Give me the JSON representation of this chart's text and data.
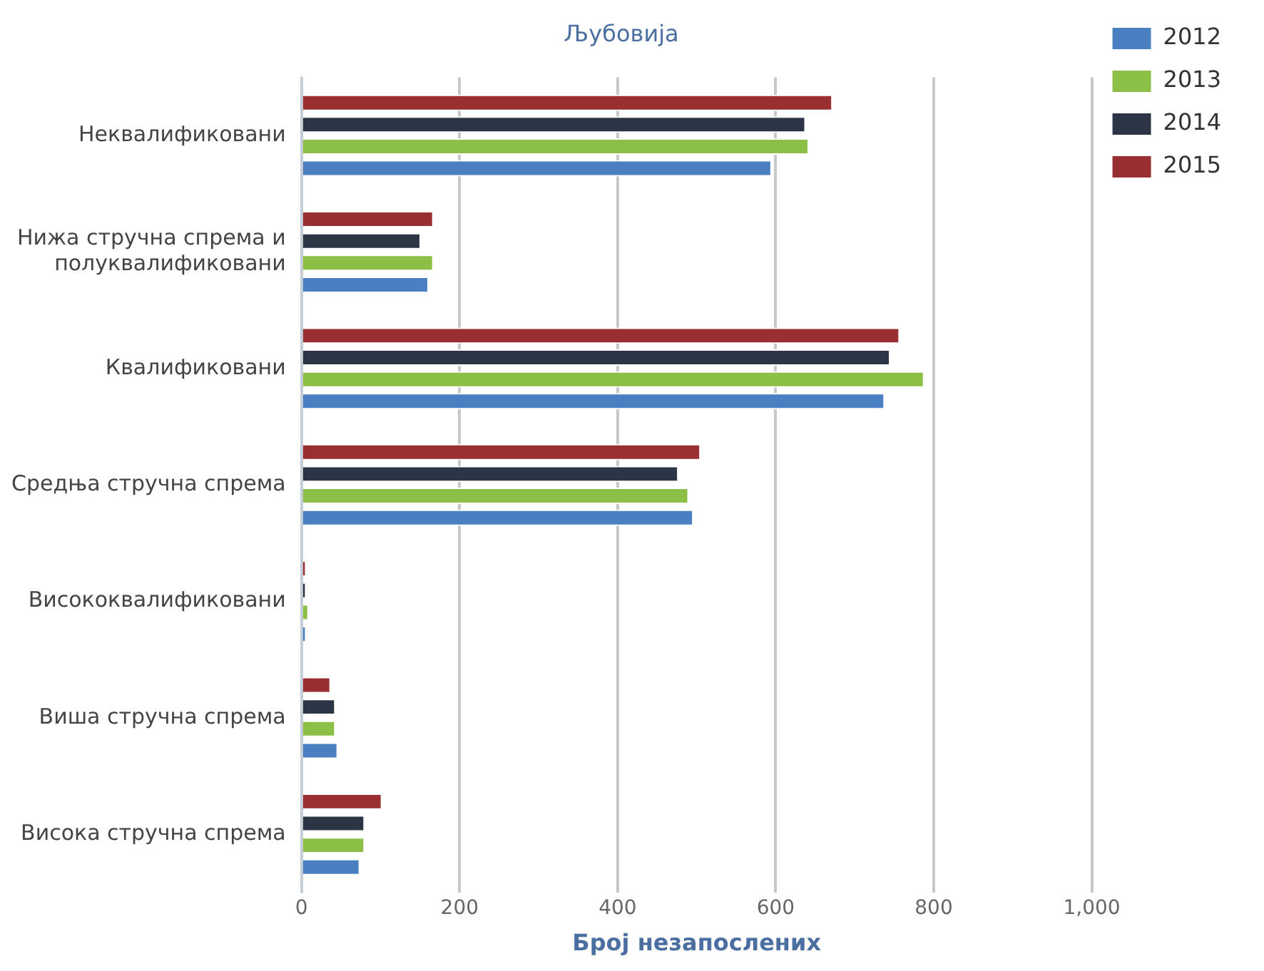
{
  "chart_data": {
    "type": "bar",
    "orientation": "horizontal",
    "title": "Љубовија",
    "xlabel": "Број незапослених",
    "categories": [
      "Неквалификовани",
      "Нижа стручна спрема и полуквалификовани",
      "Квалификовани",
      "Средња стручна спрема",
      "Висококвалификовани",
      "Виша стручна спрема",
      "Висока стручна спрема"
    ],
    "series": [
      {
        "name": "2012",
        "color": "#4a7fc1",
        "values": [
          595,
          161,
          738,
          496,
          6,
          46,
          74
        ]
      },
      {
        "name": "2013",
        "color": "#8cbf45",
        "values": [
          642,
          167,
          788,
          490,
          9,
          43,
          80
        ]
      },
      {
        "name": "2014",
        "color": "#2c3545",
        "values": [
          638,
          151,
          745,
          477,
          6,
          43,
          80
        ]
      },
      {
        "name": "2015",
        "color": "#9a2f31",
        "values": [
          672,
          167,
          757,
          505,
          6,
          37,
          102
        ]
      }
    ],
    "xlim": [
      0,
      1000
    ],
    "xticks": [
      0,
      200,
      400,
      600,
      800,
      {
        "value": 1000,
        "label": "1,000"
      }
    ],
    "grid": "x",
    "legend": "top right"
  }
}
